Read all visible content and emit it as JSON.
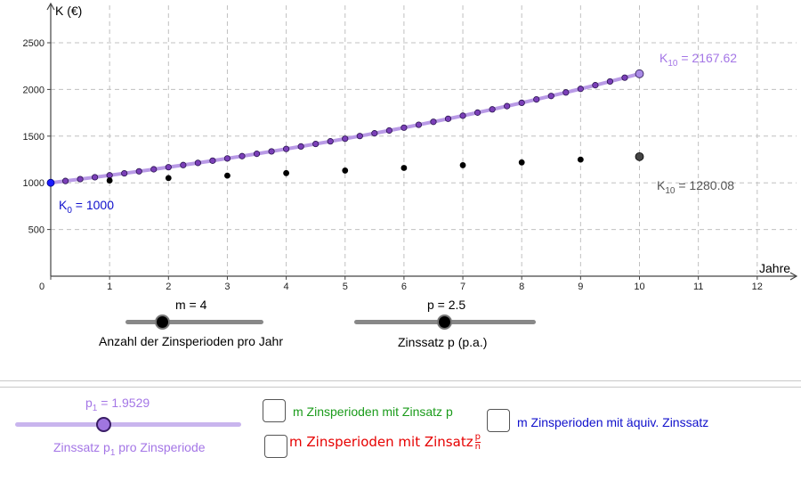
{
  "chart_data": {
    "type": "scatter",
    "xlabel": "Jahre",
    "ylabel": "K (€)",
    "x_ticks": [
      0,
      1,
      2,
      3,
      4,
      5,
      6,
      7,
      8,
      9,
      10,
      11,
      12
    ],
    "y_ticks": [
      500,
      1000,
      1500,
      2000,
      2500
    ],
    "xlim": [
      0,
      12.6
    ],
    "ylim": [
      0,
      2850
    ],
    "grid": true,
    "series": [
      {
        "color": "#000000",
        "style": "points",
        "x": [
          0,
          1,
          2,
          3,
          4,
          5,
          6,
          7,
          8,
          9,
          10
        ],
        "values": [
          1000,
          1025,
          1050.63,
          1076.89,
          1103.81,
          1131.41,
          1159.69,
          1188.69,
          1218.4,
          1248.86,
          1280.08
        ]
      },
      {
        "color": "#7b3fb8",
        "line_color": "#b99ae6",
        "style": "points+line",
        "x_step": 0.25,
        "growth_factor_per_step": 1.019529,
        "start": 1000,
        "steps": 40,
        "end_value": 2167.62
      }
    ],
    "annotations": {
      "k0_main": "K",
      "k0_sub": "0",
      "k0_rest": " = 1000",
      "k10_purple_main": "K",
      "k10_purple_sub": "10",
      "k10_purple_rest": " = 2167.62",
      "k10_black_main": "K",
      "k10_black_sub": "10",
      "k10_black_rest": " = 1280.08"
    }
  },
  "controls": {
    "m_slider": {
      "value_label": "m = 4",
      "caption": "Anzahl der Zinsperioden pro Jahr",
      "value": 4
    },
    "p_slider": {
      "value_label": "p = 2.5",
      "caption": "Zinssatz p (p.a.)",
      "value": 2.5
    },
    "p1_slider": {
      "value_main": "p",
      "value_sub": "1",
      "value_rest": " = 1.9529",
      "caption_main": "Zinssatz p",
      "caption_sub": "1",
      "caption_rest": " pro Zinsperiode",
      "value": 1.9529
    }
  },
  "checkboxes": {
    "green": {
      "label": "m Zinsperioden mit Zinsatz p",
      "color": "#1a9b1a"
    },
    "red": {
      "label": "m Zinsperioden mit Zinsatz",
      "frac_num": "p",
      "frac_den": "n",
      "color": "#e60000"
    },
    "blue": {
      "label": "m Zinsperioden mit äquiv. Zinssatz",
      "color": "#1010cc"
    }
  }
}
